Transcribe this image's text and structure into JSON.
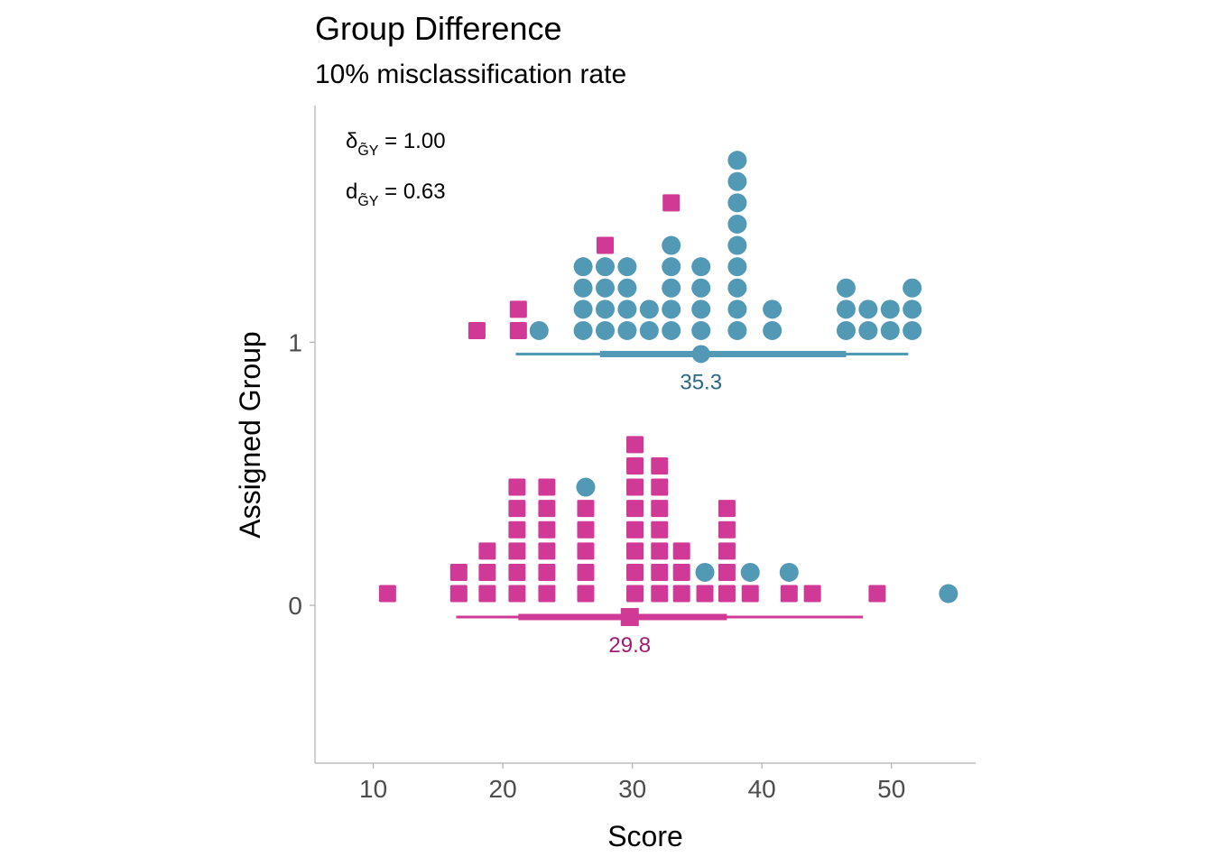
{
  "chart_data": {
    "type": "scatter",
    "subtype": "dot-histogram",
    "title": "Group Difference",
    "subtitle": "10% misclassification rate",
    "xlabel": "Score",
    "ylabel": "Assigned Group",
    "x_ticks": [
      10,
      20,
      30,
      40,
      50
    ],
    "y_ticks": [
      0,
      1
    ],
    "xlim": [
      5.5,
      56.5
    ],
    "ylim": [
      -0.6,
      1.9
    ],
    "annotations": [
      {
        "main": "δ",
        "sub": "G̃Y",
        "rest": " = 1.00"
      },
      {
        "main": "d",
        "sub": "G̃Y",
        "rest": " = 0.63"
      }
    ],
    "colors": {
      "group0": "#d03a96",
      "group1": "#5299b5",
      "mean0_text": "#a51a74",
      "mean1_text": "#2c6882",
      "axis": "#b0b0b0"
    },
    "series": [
      {
        "assigned_group": 1,
        "mean_label": "35.3",
        "mean": 35.3,
        "interval_thin": [
          21.0,
          51.3
        ],
        "interval_thick": [
          27.5,
          46.5
        ],
        "true_group_1_circles": [
          {
            "x": 22.8,
            "count": 1
          },
          {
            "x": 26.2,
            "count": 4
          },
          {
            "x": 27.9,
            "count": 4
          },
          {
            "x": 29.6,
            "count": 4
          },
          {
            "x": 31.3,
            "count": 2
          },
          {
            "x": 33.0,
            "count": 5
          },
          {
            "x": 35.3,
            "count": 4
          },
          {
            "x": 38.1,
            "count": 9
          },
          {
            "x": 40.8,
            "count": 2
          },
          {
            "x": 46.5,
            "count": 3
          },
          {
            "x": 48.2,
            "count": 2
          },
          {
            "x": 49.9,
            "count": 2
          },
          {
            "x": 51.6,
            "count": 3
          }
        ],
        "true_group_0_squares": [
          {
            "x": 18.0,
            "count": 1
          },
          {
            "x": 21.2,
            "count": 2
          },
          {
            "x": 27.9,
            "stack_level": 5
          },
          {
            "x": 33.0,
            "stack_level": 7
          }
        ]
      },
      {
        "assigned_group": 0,
        "mean_label": "29.8",
        "mean": 29.8,
        "interval_thin": [
          16.4,
          47.8
        ],
        "interval_thick": [
          21.2,
          37.3
        ],
        "true_group_0_squares": [
          {
            "x": 11.1,
            "count": 1
          },
          {
            "x": 16.6,
            "count": 2
          },
          {
            "x": 18.8,
            "count": 3
          },
          {
            "x": 21.1,
            "count": 6
          },
          {
            "x": 23.4,
            "count": 6
          },
          {
            "x": 26.4,
            "count": 5
          },
          {
            "x": 30.2,
            "count": 8
          },
          {
            "x": 32.1,
            "count": 7
          },
          {
            "x": 33.8,
            "count": 3
          },
          {
            "x": 35.6,
            "count": 1
          },
          {
            "x": 37.3,
            "count": 5
          },
          {
            "x": 39.1,
            "count": 1
          },
          {
            "x": 42.1,
            "count": 1
          },
          {
            "x": 43.9,
            "count": 1
          },
          {
            "x": 48.9,
            "count": 1
          }
        ],
        "true_group_1_circles": [
          {
            "x": 26.4,
            "stack_level": 6
          },
          {
            "x": 35.6,
            "stack_level": 2
          },
          {
            "x": 39.1,
            "stack_level": 2
          },
          {
            "x": 42.1,
            "stack_level": 2
          },
          {
            "x": 54.4,
            "stack_level": 1
          }
        ]
      }
    ]
  }
}
